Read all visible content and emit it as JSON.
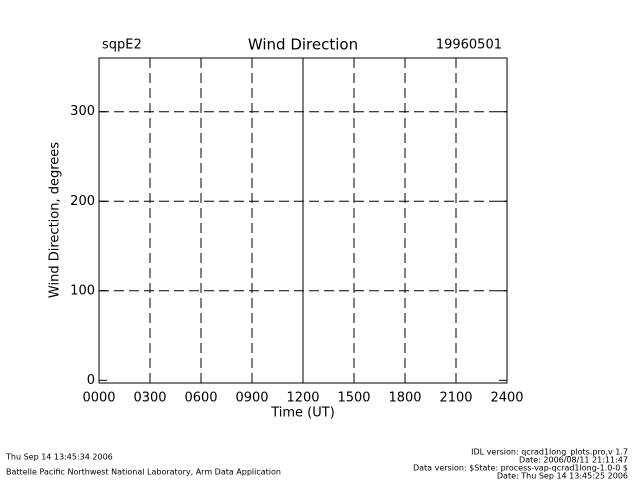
{
  "chart_data": {
    "type": "line",
    "title": "Wind Direction",
    "left_label": "sqpE2",
    "right_label": "19960501",
    "xlabel": "Time (UT)",
    "ylabel": "Wind Direction, degrees",
    "xlim": [
      0,
      2400
    ],
    "xticks": [
      {
        "value": 0,
        "label": "0000"
      },
      {
        "value": 300,
        "label": "0300"
      },
      {
        "value": 600,
        "label": "0600"
      },
      {
        "value": 900,
        "label": "0900"
      },
      {
        "value": 1200,
        "label": "1200"
      },
      {
        "value": 1500,
        "label": "1500"
      },
      {
        "value": 1800,
        "label": "1800"
      },
      {
        "value": 2100,
        "label": "2100"
      },
      {
        "value": 2400,
        "label": "2400"
      }
    ],
    "ylim": [
      -3,
      360
    ],
    "yticks": [
      0,
      100,
      200,
      300
    ],
    "grid": true,
    "vlines": [
      1200
    ]
  },
  "footer": {
    "left": [
      "Thu Sep 14 13:45:34 2006",
      "Battelle Pacific Northwest National Laboratory, Arm Data Application"
    ],
    "right": [
      "IDL version: qcrad1long_plots.pro,v 1.7",
      "Date: 2006/08/11 21:11:47",
      "Data version: $State: process-vap-qcrad1long-1.0-0 $",
      "Date: Thu Sep 14 13:45:25 2006"
    ]
  }
}
